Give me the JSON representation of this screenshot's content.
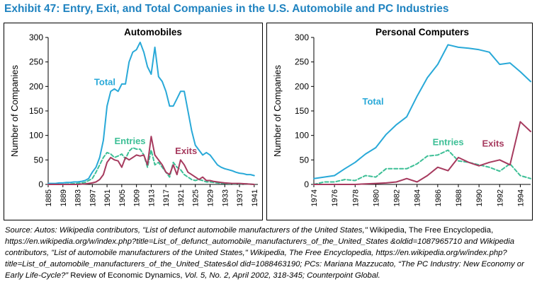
{
  "title": "Exhibit 47: Entry, Exit, and Total Companies in the U.S. Automobile and PC Industries",
  "colors": {
    "total": "#29a9d8",
    "entries": "#3dbf96",
    "exits": "#a63a5e",
    "title": "#1f83c0"
  },
  "chart_data": [
    {
      "type": "line",
      "title": "Automobiles",
      "ylabel": "Number of Companies",
      "xlabel": "",
      "xlim": [
        1885,
        1942
      ],
      "ylim": [
        0,
        300
      ],
      "yticks": [
        "0",
        "50",
        "100",
        "150",
        "200",
        "250",
        "300"
      ],
      "xticks": [
        "1885",
        "1889",
        "1893",
        "1897",
        "1901",
        "1905",
        "1909",
        "1913",
        "1917",
        "1921",
        "1925",
        "1929",
        "1933",
        "1937",
        "1941"
      ],
      "series": [
        {
          "name": "Total",
          "style": "solid",
          "x": [
            1885,
            1886,
            1887,
            1888,
            1889,
            1890,
            1891,
            1892,
            1893,
            1894,
            1895,
            1896,
            1897,
            1898,
            1899,
            1900,
            1901,
            1902,
            1903,
            1904,
            1905,
            1906,
            1907,
            1908,
            1909,
            1910,
            1911,
            1912,
            1913,
            1914,
            1915,
            1916,
            1917,
            1918,
            1919,
            1920,
            1921,
            1922,
            1923,
            1924,
            1925,
            1926,
            1927,
            1928,
            1929,
            1930,
            1931,
            1932,
            1933,
            1934,
            1935,
            1936,
            1937,
            1938,
            1939,
            1940,
            1941
          ],
          "y": [
            2,
            2,
            2,
            3,
            3,
            4,
            4,
            5,
            5,
            6,
            8,
            12,
            25,
            35,
            55,
            90,
            160,
            190,
            195,
            190,
            205,
            205,
            250,
            270,
            275,
            290,
            270,
            240,
            225,
            280,
            220,
            210,
            190,
            160,
            160,
            175,
            190,
            190,
            150,
            110,
            80,
            70,
            60,
            65,
            60,
            50,
            40,
            35,
            32,
            30,
            28,
            25,
            23,
            22,
            20,
            20,
            18
          ]
        },
        {
          "name": "Entries",
          "style": "dashed",
          "x": [
            1885,
            1887,
            1889,
            1891,
            1893,
            1895,
            1896,
            1897,
            1898,
            1899,
            1900,
            1901,
            1902,
            1903,
            1904,
            1905,
            1906,
            1907,
            1908,
            1909,
            1910,
            1911,
            1912,
            1913,
            1914,
            1915,
            1916,
            1917,
            1918,
            1919,
            1920,
            1921,
            1922,
            1923,
            1924,
            1925,
            1926,
            1927,
            1928,
            1929,
            1930,
            1931,
            1932,
            1933,
            1935,
            1937,
            1939,
            1941
          ],
          "y": [
            0,
            0,
            0,
            1,
            2,
            4,
            8,
            12,
            25,
            40,
            55,
            65,
            62,
            55,
            58,
            62,
            52,
            68,
            75,
            72,
            72,
            60,
            35,
            70,
            40,
            45,
            35,
            25,
            15,
            45,
            35,
            30,
            20,
            15,
            10,
            8,
            10,
            8,
            5,
            5,
            4,
            3,
            2,
            2,
            1,
            1,
            1,
            0
          ]
        },
        {
          "name": "Exits",
          "style": "solid",
          "x": [
            1885,
            1887,
            1889,
            1891,
            1893,
            1895,
            1897,
            1898,
            1899,
            1900,
            1901,
            1902,
            1903,
            1904,
            1905,
            1906,
            1907,
            1908,
            1909,
            1910,
            1911,
            1912,
            1913,
            1914,
            1915,
            1916,
            1917,
            1918,
            1919,
            1920,
            1921,
            1922,
            1923,
            1924,
            1925,
            1926,
            1927,
            1928,
            1929,
            1930,
            1931,
            1932,
            1933,
            1935,
            1937,
            1939,
            1941
          ],
          "y": [
            0,
            0,
            0,
            0,
            0,
            1,
            3,
            5,
            10,
            20,
            45,
            55,
            50,
            48,
            35,
            55,
            50,
            55,
            60,
            58,
            60,
            40,
            98,
            60,
            50,
            40,
            25,
            20,
            40,
            20,
            50,
            40,
            25,
            20,
            15,
            10,
            15,
            8,
            8,
            6,
            5,
            4,
            3,
            2,
            2,
            1,
            0
          ]
        }
      ],
      "annotations": [
        {
          "text": "Total",
          "x": 1897.5,
          "y": 203,
          "color": "total"
        },
        {
          "text": "Entries",
          "x": 1903,
          "y": 82,
          "color": "entries"
        },
        {
          "text": "Exits",
          "x": 1919.5,
          "y": 62,
          "color": "exits"
        }
      ]
    },
    {
      "type": "line",
      "title": "Personal Computers",
      "ylabel": "Number of Companies",
      "xlabel": "",
      "xlim": [
        1974,
        1995
      ],
      "ylim": [
        0,
        300
      ],
      "yticks": [
        "0",
        "50",
        "100",
        "150",
        "200",
        "250",
        "300"
      ],
      "xticks": [
        "1974",
        "1976",
        "1978",
        "1980",
        "1982",
        "1984",
        "1986",
        "1988",
        "1990",
        "1992",
        "1994"
      ],
      "series": [
        {
          "name": "Total",
          "style": "solid",
          "x": [
            1974,
            1975,
            1976,
            1977,
            1978,
            1979,
            1980,
            1981,
            1982,
            1983,
            1984,
            1985,
            1986,
            1987,
            1988,
            1989,
            1990,
            1991,
            1992,
            1993,
            1994,
            1995
          ],
          "y": [
            12,
            15,
            18,
            32,
            45,
            62,
            75,
            102,
            122,
            138,
            180,
            218,
            245,
            285,
            280,
            278,
            275,
            270,
            245,
            248,
            230,
            210
          ]
        },
        {
          "name": "Entries",
          "style": "dashed",
          "x": [
            1974,
            1975,
            1976,
            1977,
            1978,
            1979,
            1980,
            1981,
            1982,
            1983,
            1984,
            1985,
            1986,
            1987,
            1988,
            1989,
            1990,
            1991,
            1992,
            1993,
            1994,
            1995
          ],
          "y": [
            0,
            5,
            5,
            10,
            8,
            18,
            15,
            32,
            32,
            32,
            42,
            58,
            60,
            70,
            48,
            45,
            40,
            35,
            27,
            42,
            18,
            12
          ]
        },
        {
          "name": "Exits",
          "style": "solid",
          "x": [
            1974,
            1975,
            1976,
            1977,
            1978,
            1979,
            1980,
            1981,
            1982,
            1983,
            1984,
            1985,
            1986,
            1987,
            1988,
            1989,
            1990,
            1991,
            1992,
            1993,
            1994,
            1995
          ],
          "y": [
            0,
            0,
            0,
            0,
            0,
            1,
            2,
            3,
            5,
            12,
            5,
            18,
            35,
            28,
            55,
            45,
            38,
            45,
            50,
            40,
            128,
            108
          ]
        }
      ],
      "annotations": [
        {
          "text": "Total",
          "x": 1978.7,
          "y": 163,
          "color": "total"
        },
        {
          "text": "Entries",
          "x": 1985.5,
          "y": 80,
          "color": "entries"
        },
        {
          "text": "Exits",
          "x": 1990.3,
          "y": 77,
          "color": "exits"
        }
      ]
    }
  ],
  "source": [
    {
      "text": "Source: Autos: Wikipedia contributors, \"List of defunct automobile manufacturers of the United States,\" ",
      "italic": true
    },
    {
      "text": "Wikipedia, The Free Encyclopedia, ",
      "italic": false
    },
    {
      "text": "https://en.wikipedia.org/w/index.php?title=List_of_defunct_automobile_manufacturers_of_the_United_States &oldid=1087965710 and Wikipedia contributors, \"List of automobile manufacturers of the United States,\" Wikipedia, The Free Encyclopedia, https://en.wikipedia.org/w/index.php?title=List_of_automobile_manufacturers_of_the_United_States&ol did=1088463190; PCs: Mariana Mazzucato, “The PC Industry: New Economy or Early Life-Cycle?” ",
      "italic": true
    },
    {
      "text": "Review of Economic Dynamics, ",
      "italic": false
    },
    {
      "text": "Vol. 5, No. 2, April 2002, 318-345; Counterpoint Global.",
      "italic": true
    }
  ]
}
